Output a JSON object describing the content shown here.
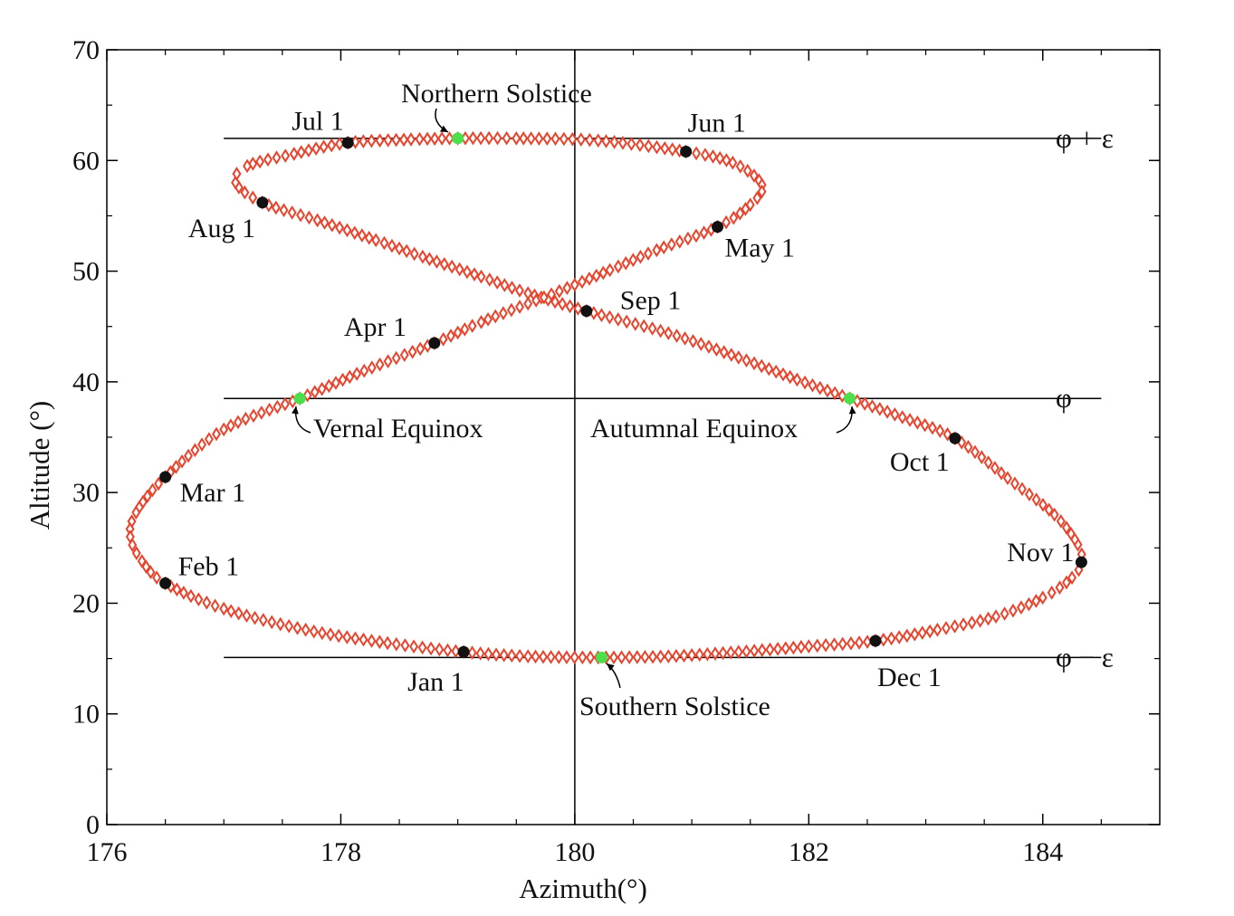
{
  "chart_data": {
    "type": "scatter",
    "xlabel": "Azimuth(°)",
    "ylabel": "Altitude (°)",
    "xlim": [
      176,
      185
    ],
    "ylim": [
      0,
      70
    ],
    "xticks": [
      176,
      178,
      180,
      182,
      184
    ],
    "yticks": [
      0,
      10,
      20,
      30,
      40,
      50,
      60,
      70
    ],
    "grid": false,
    "colors": {
      "analemma": "#e8432c",
      "month_marker": "#111111",
      "key_day": "#4be04b"
    },
    "reference_lines": [
      {
        "label": "φ + ε",
        "y": 62.0
      },
      {
        "label": "φ",
        "y": 38.5
      },
      {
        "label": "φ − ε",
        "y": 15.1
      }
    ],
    "vertical_line_x": 180,
    "analemma": {
      "marker": "diamond",
      "points": [
        [
          179.05,
          15.6
        ],
        [
          179.6,
          15.2
        ],
        [
          180.2,
          15.1
        ],
        [
          180.8,
          15.2
        ],
        [
          181.4,
          15.6
        ],
        [
          182.0,
          16.1
        ],
        [
          182.57,
          16.6
        ],
        [
          183.1,
          17.6
        ],
        [
          183.6,
          18.8
        ],
        [
          184.0,
          20.5
        ],
        [
          184.25,
          22.3
        ],
        [
          184.33,
          23.7
        ],
        [
          184.3,
          25.3
        ],
        [
          184.1,
          28.0
        ],
        [
          183.7,
          31.3
        ],
        [
          183.25,
          34.9
        ],
        [
          182.8,
          36.8
        ],
        [
          182.35,
          38.5
        ],
        [
          181.9,
          40.2
        ],
        [
          181.4,
          42.2
        ],
        [
          180.8,
          44.4
        ],
        [
          180.1,
          46.4
        ],
        [
          179.6,
          48.0
        ],
        [
          179.2,
          49.5
        ],
        [
          178.7,
          51.3
        ],
        [
          178.3,
          52.8
        ],
        [
          177.8,
          54.6
        ],
        [
          177.33,
          56.2
        ],
        [
          177.1,
          58.0
        ],
        [
          177.2,
          59.5
        ],
        [
          177.6,
          60.6
        ],
        [
          178.06,
          61.6
        ],
        [
          178.6,
          61.9
        ],
        [
          179.0,
          62.0
        ],
        [
          179.5,
          62.0
        ],
        [
          180.2,
          61.8
        ],
        [
          180.95,
          60.8
        ],
        [
          181.35,
          59.8
        ],
        [
          181.6,
          57.8
        ],
        [
          181.5,
          56.0
        ],
        [
          181.22,
          54.0
        ],
        [
          180.7,
          51.9
        ],
        [
          180.3,
          50.1
        ],
        [
          179.8,
          47.9
        ],
        [
          179.2,
          45.4
        ],
        [
          178.8,
          43.5
        ],
        [
          178.2,
          41.0
        ],
        [
          177.65,
          38.5
        ],
        [
          177.0,
          35.7
        ],
        [
          176.5,
          31.4
        ],
        [
          176.25,
          28.2
        ],
        [
          176.2,
          26.0
        ],
        [
          176.3,
          23.8
        ],
        [
          176.5,
          21.8
        ],
        [
          177.0,
          19.5
        ],
        [
          177.7,
          17.6
        ],
        [
          178.4,
          16.4
        ]
      ]
    },
    "month_markers": [
      {
        "label": "Jan 1",
        "x": 179.05,
        "y": 15.6
      },
      {
        "label": "Feb 1",
        "x": 176.5,
        "y": 21.8
      },
      {
        "label": "Mar 1",
        "x": 176.5,
        "y": 31.4
      },
      {
        "label": "Apr 1",
        "x": 178.8,
        "y": 43.5
      },
      {
        "label": "May 1",
        "x": 181.22,
        "y": 54.0
      },
      {
        "label": "Jun 1",
        "x": 180.95,
        "y": 60.8
      },
      {
        "label": "Jul 1",
        "x": 178.06,
        "y": 61.6
      },
      {
        "label": "Aug 1",
        "x": 177.33,
        "y": 56.2
      },
      {
        "label": "Sep 1",
        "x": 180.1,
        "y": 46.4
      },
      {
        "label": "Oct 1",
        "x": 183.25,
        "y": 34.9
      },
      {
        "label": "Nov 1",
        "x": 184.33,
        "y": 23.7
      },
      {
        "label": "Dec 1",
        "x": 182.57,
        "y": 16.6
      }
    ],
    "key_days": [
      {
        "label": "Northern Solstice",
        "x": 179.0,
        "y": 62.0
      },
      {
        "label": "Vernal Equinox",
        "x": 177.65,
        "y": 38.5
      },
      {
        "label": "Autumnal Equinox",
        "x": 182.35,
        "y": 38.5
      },
      {
        "label": "Southern Solstice",
        "x": 180.23,
        "y": 15.1
      }
    ]
  }
}
